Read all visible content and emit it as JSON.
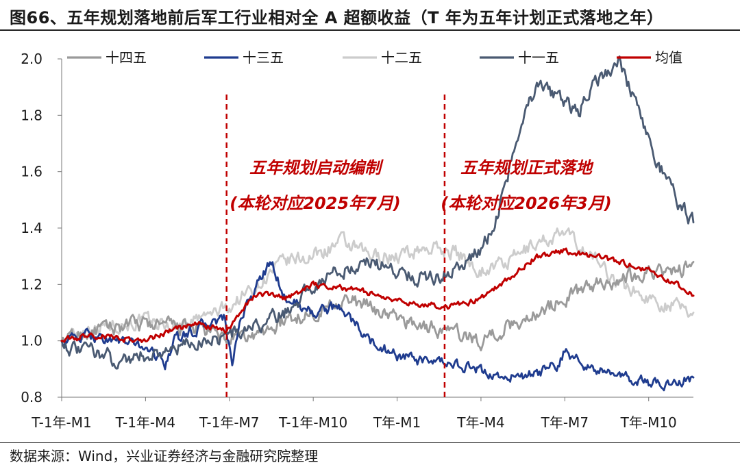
{
  "title": "图66、五年规划落地前后军工行业相对全 A 超额收益（T 年为五年计划正式落地之年）",
  "source": "数据来源：Wind，兴业证券经济与金融研究院整理",
  "colors": {
    "shisiwu": "#9a9a9a",
    "shisanwu": "#1f3c8f",
    "shierwu": "#cccccc",
    "shiyiwu": "#4a5a72",
    "mean": "#c00000"
  },
  "chart_data": {
    "type": "line",
    "title": "",
    "xlabel": "",
    "ylabel": "",
    "ylim": [
      0.8,
      2.0
    ],
    "yticks": [
      0.8,
      1.0,
      1.2,
      1.4,
      1.6,
      1.8,
      2.0
    ],
    "ytick_labels": [
      "0.8",
      "1.0",
      "1.2",
      "1.4",
      "1.6",
      "1.8",
      "2.0"
    ],
    "x_domain": [
      0,
      22.6
    ],
    "x_ticks": [
      0,
      3,
      6,
      9,
      12,
      15,
      18,
      21
    ],
    "x_tick_labels": [
      "T-1年-M1",
      "T-1年-M4",
      "T-1年-M7",
      "T-1年-M10",
      "T年-M1",
      "T年-M4",
      "T年-M7",
      "T年-M10"
    ],
    "grid": false,
    "legend_position": "top",
    "vlines": [
      {
        "x": 5.9,
        "label_lines": [
          "五年规划启动编制",
          "(本轮对应2025年7月)"
        ]
      },
      {
        "x": 13.7,
        "label_lines": [
          "五年规划正式落地",
          "(本轮对应2026年3月)"
        ]
      }
    ],
    "series": [
      {
        "name": "十四五",
        "color": "#9a9a9a",
        "noise": 0.02,
        "x": [
          0,
          1,
          2,
          3,
          4,
          5,
          6,
          7,
          8,
          9,
          10,
          11,
          12,
          13,
          14,
          15,
          16,
          17,
          18,
          19,
          20,
          21,
          22,
          22.6
        ],
        "y": [
          1.0,
          1.03,
          1.05,
          1.06,
          1.05,
          1.04,
          1.0,
          1.02,
          1.07,
          1.1,
          1.15,
          1.12,
          1.08,
          1.05,
          1.03,
          1.0,
          1.05,
          1.1,
          1.15,
          1.2,
          1.22,
          1.25,
          1.24,
          1.28
        ]
      },
      {
        "name": "十三五",
        "color": "#1f3c8f",
        "noise": 0.015,
        "x": [
          0,
          1,
          2,
          3,
          3.7,
          4,
          5,
          5.8,
          6.1,
          6.5,
          7,
          7.5,
          8,
          9,
          10,
          11,
          12,
          13,
          14,
          15,
          16,
          17,
          17.8,
          18,
          19,
          20,
          21,
          22,
          22.6
        ],
        "y": [
          1.0,
          1.02,
          1.0,
          0.98,
          0.92,
          1.0,
          1.05,
          1.08,
          0.92,
          1.1,
          1.2,
          1.28,
          1.15,
          1.1,
          1.12,
          1.0,
          0.95,
          0.92,
          0.92,
          0.89,
          0.87,
          0.88,
          0.92,
          0.96,
          0.9,
          0.87,
          0.85,
          0.85,
          0.87
        ]
      },
      {
        "name": "十二五",
        "color": "#cccccc",
        "noise": 0.02,
        "x": [
          0,
          1,
          2,
          3,
          4,
          5,
          6,
          7,
          8,
          9,
          10,
          11,
          12,
          13,
          14,
          15,
          16,
          17,
          18,
          19,
          20,
          21,
          22,
          22.6
        ],
        "y": [
          1.0,
          1.05,
          1.06,
          1.07,
          1.05,
          1.08,
          1.12,
          1.2,
          1.28,
          1.3,
          1.35,
          1.3,
          1.3,
          1.33,
          1.32,
          1.25,
          1.28,
          1.35,
          1.38,
          1.3,
          1.2,
          1.15,
          1.12,
          1.1
        ]
      },
      {
        "name": "十一五",
        "color": "#4a5a72",
        "noise": 0.02,
        "x": [
          0,
          0.5,
          1,
          1.5,
          2,
          3,
          4,
          5,
          6,
          7,
          8,
          9,
          10,
          11,
          12,
          13,
          14,
          15,
          15.5,
          16,
          16.5,
          17,
          18,
          18.5,
          19,
          20,
          20.5,
          21,
          21.5,
          22,
          22.6
        ],
        "y": [
          1.0,
          0.96,
          0.97,
          0.95,
          0.93,
          0.95,
          0.97,
          1.0,
          1.02,
          1.05,
          1.1,
          1.2,
          1.25,
          1.28,
          1.25,
          1.22,
          1.25,
          1.32,
          1.42,
          1.6,
          1.8,
          1.9,
          1.85,
          1.8,
          1.92,
          1.98,
          1.85,
          1.7,
          1.6,
          1.5,
          1.42
        ]
      },
      {
        "name": "均值",
        "color": "#c00000",
        "noise": 0.008,
        "x": [
          0,
          1,
          2,
          3,
          4,
          5,
          5.9,
          6.5,
          7,
          8,
          9,
          10,
          11,
          12,
          13,
          14,
          15,
          16,
          17,
          18,
          19,
          20,
          21,
          22,
          22.6
        ],
        "y": [
          1.0,
          1.02,
          1.01,
          1.0,
          1.04,
          1.06,
          1.03,
          1.12,
          1.17,
          1.15,
          1.2,
          1.19,
          1.17,
          1.14,
          1.13,
          1.12,
          1.15,
          1.22,
          1.3,
          1.32,
          1.3,
          1.28,
          1.25,
          1.2,
          1.16
        ]
      }
    ]
  }
}
